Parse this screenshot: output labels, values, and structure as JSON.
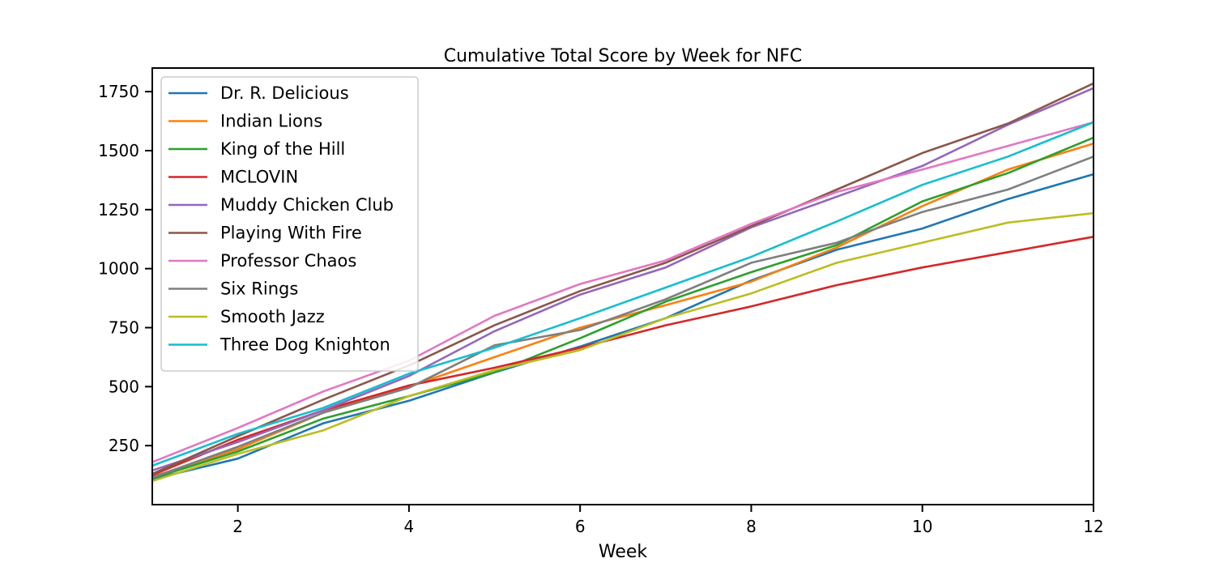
{
  "chart_data": {
    "type": "line",
    "title": "Cumulative Total Score by Week for NFC",
    "xlabel": "Week",
    "ylabel": "",
    "xlim": [
      1,
      12
    ],
    "ylim": [
      0,
      1850
    ],
    "xticks": [
      2,
      4,
      6,
      8,
      10,
      12
    ],
    "yticks": [
      250,
      500,
      750,
      1000,
      1250,
      1500,
      1750
    ],
    "grid": false,
    "legend_position": "upper-left",
    "x": [
      1,
      2,
      3,
      4,
      5,
      6,
      7,
      8,
      9,
      10,
      11,
      12
    ],
    "series": [
      {
        "name": "Dr. R. Delicious",
        "color": "#1f77b4",
        "values": [
          108,
          195,
          345,
          440,
          560,
          670,
          790,
          950,
          1080,
          1170,
          1295,
          1400
        ]
      },
      {
        "name": "Indian Lions",
        "color": "#ff7f0e",
        "values": [
          118,
          235,
          390,
          500,
          625,
          750,
          845,
          945,
          1090,
          1265,
          1420,
          1530
        ]
      },
      {
        "name": "King of the Hill",
        "color": "#2ca02c",
        "values": [
          112,
          225,
          365,
          460,
          560,
          705,
          860,
          985,
          1100,
          1285,
          1405,
          1555
        ]
      },
      {
        "name": "MCLOVIN",
        "color": "#d62728",
        "values": [
          125,
          275,
          400,
          505,
          580,
          665,
          760,
          840,
          930,
          1005,
          1070,
          1135
        ]
      },
      {
        "name": "Muddy Chicken Club",
        "color": "#9467bd",
        "values": [
          145,
          265,
          400,
          545,
          735,
          890,
          1005,
          1175,
          1305,
          1435,
          1610,
          1765
        ]
      },
      {
        "name": "Playing With Fire",
        "color": "#8c564b",
        "values": [
          130,
          290,
          445,
          590,
          760,
          905,
          1025,
          1180,
          1335,
          1490,
          1615,
          1785
        ]
      },
      {
        "name": "Professor Chaos",
        "color": "#e377c2",
        "values": [
          180,
          325,
          480,
          610,
          800,
          935,
          1035,
          1190,
          1325,
          1420,
          1520,
          1620
        ]
      },
      {
        "name": "Six Rings",
        "color": "#7f7f7f",
        "values": [
          115,
          245,
          390,
          495,
          675,
          740,
          870,
          1025,
          1110,
          1240,
          1335,
          1475
        ]
      },
      {
        "name": "Smooth Jazz",
        "color": "#bcbd22",
        "values": [
          100,
          215,
          315,
          460,
          570,
          655,
          790,
          895,
          1025,
          1110,
          1195,
          1235
        ]
      },
      {
        "name": "Three Dog Knighton",
        "color": "#17becf",
        "values": [
          165,
          300,
          410,
          555,
          665,
          790,
          920,
          1050,
          1200,
          1355,
          1475,
          1620
        ]
      }
    ]
  }
}
